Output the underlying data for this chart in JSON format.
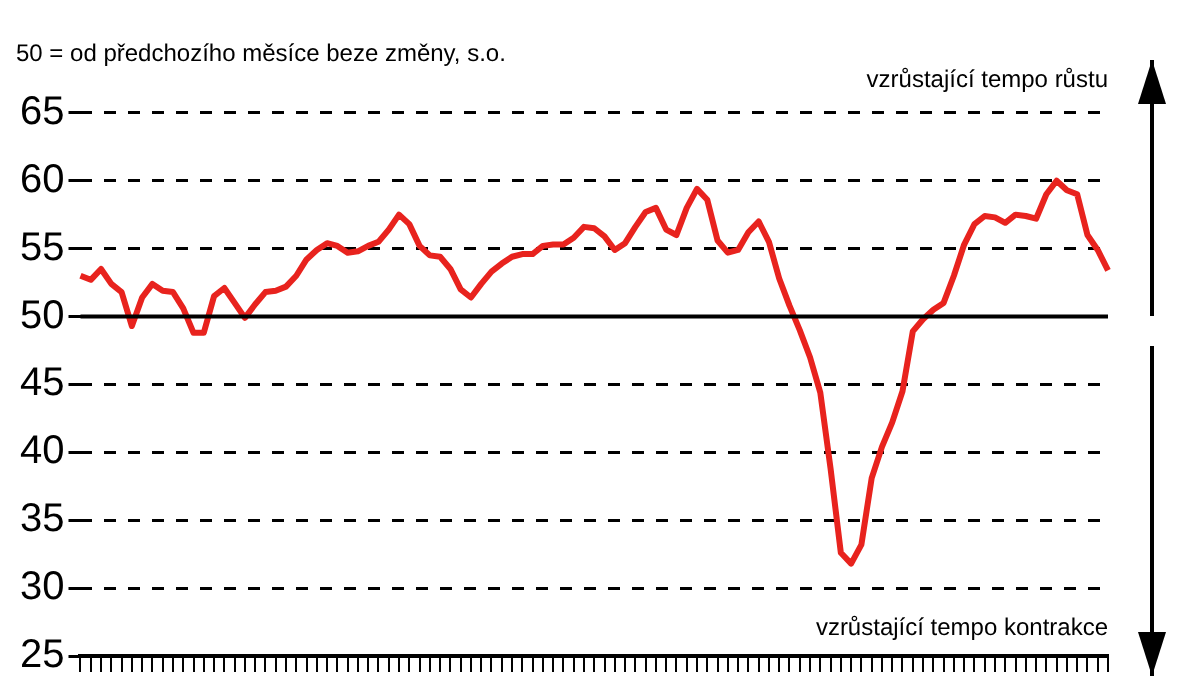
{
  "chart_data": {
    "type": "line",
    "subtitle": "50 = od předchozího měsíce beze změny, s.o.",
    "annotations": [
      "vzrůstající tempo růstu",
      "vzrůstající tempo kontrakce"
    ],
    "categories": [
      null,
      null,
      null,
      null,
      null,
      null,
      null,
      null,
      null,
      null,
      null,
      null,
      null,
      null,
      null,
      null,
      null,
      null,
      null,
      null,
      null,
      null,
      null,
      null,
      null,
      null,
      null,
      null,
      null,
      null,
      null,
      null,
      null,
      null,
      null,
      null,
      null,
      null,
      null,
      null,
      null,
      null,
      null,
      null,
      null,
      null,
      null,
      null,
      null,
      null,
      null,
      null,
      null,
      null,
      null,
      null,
      null,
      null,
      null,
      null,
      null,
      null,
      null,
      null,
      null,
      null,
      null,
      null,
      null,
      null,
      null,
      null,
      null,
      null,
      null,
      null,
      null,
      null,
      null,
      null,
      null,
      null,
      null,
      null,
      null,
      null,
      null,
      null,
      null,
      null,
      null,
      null,
      null,
      null,
      null,
      null,
      null,
      null,
      null,
      null,
      null
    ],
    "series": [
      {
        "color": "#e8231e",
        "values": [
          53.0,
          52.7,
          53.5,
          52.4,
          51.8,
          49.3,
          51.4,
          52.4,
          51.9,
          51.8,
          50.6,
          48.8,
          48.8,
          51.5,
          52.1,
          51.0,
          49.9,
          50.9,
          51.8,
          51.9,
          52.2,
          53.0,
          54.2,
          54.9,
          55.4,
          55.2,
          54.7,
          54.8,
          55.2,
          55.5,
          56.4,
          57.5,
          56.8,
          55.2,
          54.5,
          54.4,
          53.5,
          52.0,
          51.4,
          52.4,
          53.3,
          53.9,
          54.4,
          54.6,
          54.6,
          55.2,
          55.3,
          55.3,
          55.8,
          56.6,
          56.5,
          55.9,
          54.9,
          55.4,
          56.6,
          57.7,
          58.0,
          56.4,
          56.0,
          58.0,
          59.4,
          58.6,
          55.6,
          54.7,
          54.9,
          56.2,
          57.0,
          55.5,
          52.8,
          50.8,
          49.0,
          47.0,
          44.4,
          38.8,
          32.6,
          31.8,
          33.2,
          38.1,
          40.4,
          42.2,
          44.5,
          48.9,
          49.8,
          50.5,
          51.0,
          53.0,
          55.3,
          56.8,
          57.4,
          57.3,
          56.9,
          57.5,
          57.4,
          57.2,
          59.0,
          60.0,
          59.3,
          59.0,
          56.0,
          54.9,
          53.4
        ]
      }
    ],
    "ylim": [
      25,
      65
    ],
    "yticks": [
      25,
      30,
      35,
      40,
      45,
      50,
      55,
      60,
      65
    ],
    "ref_lines": [
      {
        "axis": "y",
        "value": 50,
        "color": "#000000",
        "line_style": "solid"
      }
    ],
    "grid": "y",
    "legend": false,
    "tick_labels": "y",
    "marker": "none",
    "line_style": "solid"
  }
}
